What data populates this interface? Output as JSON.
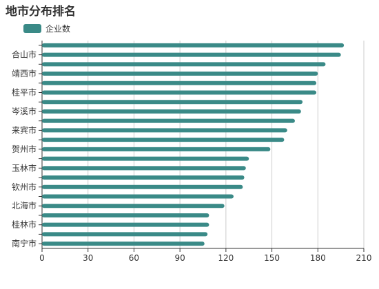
{
  "title": "地市分布排名",
  "legend": {
    "label": "企业数",
    "color": "#3a8a87"
  },
  "chart_data": {
    "type": "bar",
    "orientation": "horizontal",
    "title": "地市分布排名",
    "xlabel": "",
    "ylabel": "",
    "xlim": [
      0,
      210
    ],
    "xticks": [
      0,
      30,
      60,
      90,
      120,
      150,
      180,
      210
    ],
    "grid": "vertical",
    "legend_position": "top-left",
    "series": [
      {
        "name": "企业数",
        "color": "#3a8a87",
        "values": [
          106,
          108,
          109,
          109,
          119,
          125,
          131,
          132,
          133,
          135,
          149,
          158,
          160,
          165,
          169,
          170,
          179,
          179,
          180,
          185,
          195,
          197
        ]
      }
    ],
    "categories": [
      "南宁市",
      "",
      "桂林市",
      "",
      "北海市",
      "",
      "钦州市",
      "",
      "玉林市",
      "",
      "贺州市",
      "",
      "来宾市",
      "",
      "岑溪市",
      "",
      "桂平市",
      "",
      "靖西市",
      "",
      "合山市",
      ""
    ]
  }
}
